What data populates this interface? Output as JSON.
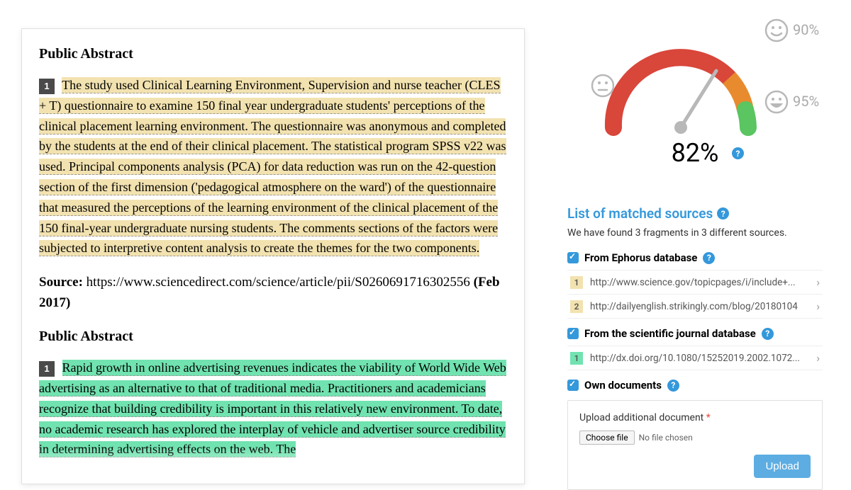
{
  "colors": {
    "highlight_yellow": "#f2e2b0",
    "highlight_green": "#71e3b0",
    "badge_dark": "#4a4a4a",
    "badge_green": "#5fd89f",
    "link_blue": "#3498db",
    "gauge_red": "#d9463a",
    "gauge_orange": "#e88b2e",
    "gauge_green": "#5ac561",
    "face_gray": "#b8b8b8"
  },
  "document": {
    "sections": [
      {
        "heading": "Public Abstract",
        "fragment_badge": "1",
        "badge_bg": "#4a4a4a",
        "highlight_color": "#f2e2b0",
        "text": "The study used Clinical Learning Environment, Supervision and nurse teacher (CLES + T) questionnaire to examine 150 final year undergraduate students' perceptions of the clinical placement learning environment. The questionnaire was anonymous and completed by the students at the end of their clinical placement. The statistical program SPSS v22 was used. Principal components analysis (PCA) for data reduction was run on the 42-question section of the first dimension ('pedagogical atmosphere on the ward') of the questionnaire that measured the perceptions of the learning environment of the clinical placement of the 150 final-year undergraduate nursing students. The comments sections of the factors were subjected to interpretive content analysis to create the themes for the two components."
      },
      {
        "source_label": "Source:",
        "source_url": "https://www.sciencedirect.com/science/article/pii/S0260691716302556",
        "source_date": "(Feb 2017)"
      },
      {
        "heading": "Public Abstract",
        "fragment_badge": "1",
        "badge_bg": "#4a4a4a",
        "highlight_color": "#71e3b0",
        "text": "Rapid growth in online advertising revenues indicates the viability of World Wide Web advertising as an alternative to that of traditional media. Practitioners and academicians recognize that building credibility is important in this relatively new environment. To date, no academic research has explored the interplay of vehicle and advertiser source credibility in determining advertising effects on the web. The"
      }
    ]
  },
  "gauge": {
    "percent_value": 82,
    "percent_display": "82%",
    "markers": [
      {
        "label": "90%",
        "face": "smile"
      },
      {
        "label": "95%",
        "face": "grin"
      }
    ],
    "neutral_face": true
  },
  "sources_panel": {
    "title": "List of matched sources",
    "subtitle": "We have found 3 fragments in 3 different sources.",
    "groups": [
      {
        "label": "From Ephorus database",
        "checked": true,
        "items": [
          {
            "num": "1",
            "num_bg": "#f2e2b0",
            "url": "http://www.science.gov/topicpages/i/include+..."
          },
          {
            "num": "2",
            "num_bg": "#f2e2b0",
            "url": "http://dailyenglish.strikingly.com/blog/20180104"
          }
        ]
      },
      {
        "label": "From the scientific journal database",
        "checked": true,
        "items": [
          {
            "num": "1",
            "num_bg": "#71e3b0",
            "url": "http://dx.doi.org/10.1080/15252019.2002.1072..."
          }
        ]
      },
      {
        "label": "Own documents",
        "checked": true,
        "items": []
      }
    ]
  },
  "upload": {
    "label": "Upload additional document",
    "choose_file": "Choose file",
    "no_file": "No file chosen",
    "button": "Upload"
  }
}
